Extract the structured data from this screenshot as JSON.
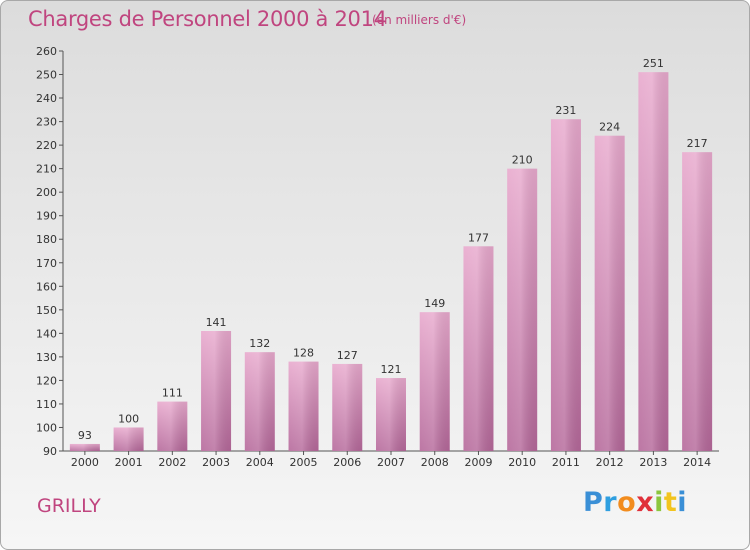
{
  "header": {
    "title": "Charges de Personnel 2000 à 2014",
    "subtitle": "(en milliers d'€)"
  },
  "footer": {
    "place": "GRILLY",
    "logo_letters": [
      "P",
      "r",
      "o",
      "x",
      "i",
      "t",
      "i"
    ]
  },
  "colors": {
    "text_accent": "#c0457f",
    "bar_light": "#e8a9cd",
    "bar_dark": "#b5689a",
    "logo": [
      "#3a8fd6",
      "#2f9fe0",
      "#f28c1e",
      "#e0303a",
      "#8cc63e",
      "#f2c41e",
      "#3a8fd6"
    ]
  },
  "chart_data": {
    "type": "bar",
    "title": "Charges de Personnel 2000 à 2014",
    "subtitle": "(en milliers d'€)",
    "categories": [
      "2000",
      "2001",
      "2002",
      "2003",
      "2004",
      "2005",
      "2006",
      "2007",
      "2008",
      "2009",
      "2010",
      "2011",
      "2012",
      "2013",
      "2014"
    ],
    "values": [
      93,
      100,
      111,
      141,
      132,
      128,
      127,
      121,
      149,
      177,
      210,
      231,
      224,
      251,
      217
    ],
    "ylim": [
      90,
      260
    ],
    "yticks": [
      90,
      100,
      110,
      120,
      130,
      140,
      150,
      160,
      170,
      180,
      190,
      200,
      210,
      220,
      230,
      240,
      250,
      260
    ],
    "grid": false,
    "legend": "none"
  }
}
